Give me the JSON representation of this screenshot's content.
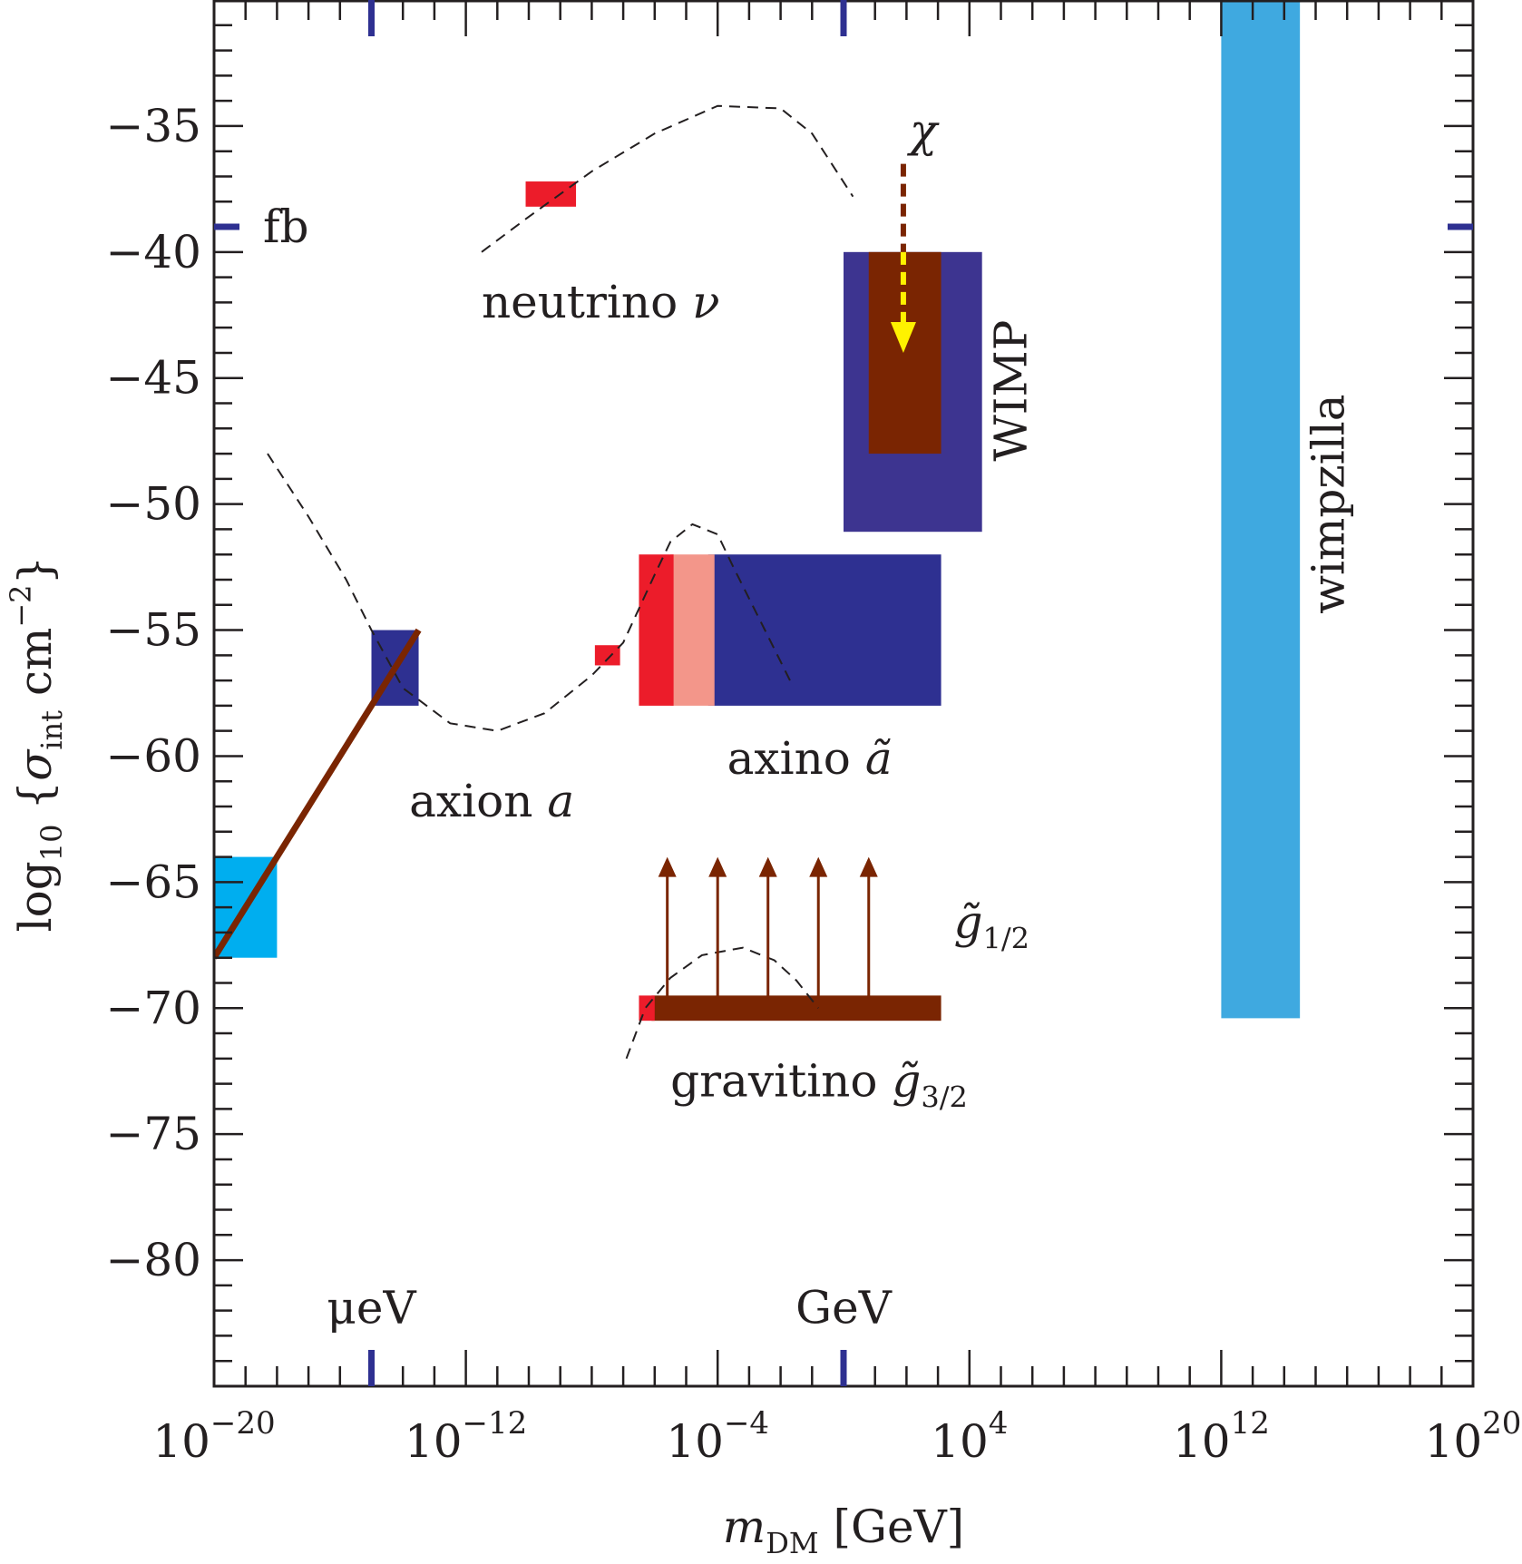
{
  "chart_data": {
    "type": "region-plot",
    "title": "",
    "xlabel": {
      "main": "m",
      "sub": "DM",
      "unit": "[GeV]"
    },
    "ylabel": {
      "prefix": "log",
      "prefix_sub": "10",
      "brace_open": "{",
      "sigma": "σ",
      "sigma_sub": "int",
      "unit": "cm",
      "unit_exp": "−2",
      "brace_close": "}"
    },
    "x_scale": "log10",
    "xlim": [
      -20,
      20
    ],
    "ylim": [
      -85,
      -30
    ],
    "x_ticks": [
      {
        "value": -20,
        "base": "10",
        "exp": "−20"
      },
      {
        "value": -12,
        "base": "10",
        "exp": "−12"
      },
      {
        "value": -4,
        "base": "10",
        "exp": "−4"
      },
      {
        "value": 4,
        "base": "10",
        "exp": "4"
      },
      {
        "value": 12,
        "base": "10",
        "exp": "12"
      },
      {
        "value": 20,
        "base": "10",
        "exp": "20"
      }
    ],
    "y_ticks": [
      {
        "value": -35,
        "label": "−35"
      },
      {
        "value": -40,
        "label": "−40"
      },
      {
        "value": -45,
        "label": "−45"
      },
      {
        "value": -50,
        "label": "−50"
      },
      {
        "value": -55,
        "label": "−55"
      },
      {
        "value": -60,
        "label": "−60"
      },
      {
        "value": -65,
        "label": "−65"
      },
      {
        "value": -70,
        "label": "−70"
      },
      {
        "value": -75,
        "label": "−75"
      },
      {
        "value": -80,
        "label": "−80"
      }
    ],
    "reference_marks": [
      {
        "axis": "x",
        "value": -15,
        "label": "μeV",
        "label_y": -82.5
      },
      {
        "axis": "x",
        "value": 0,
        "label": "GeV",
        "label_y": -82.5
      },
      {
        "axis": "y",
        "value": -39,
        "label": "fb"
      }
    ],
    "regions": [
      {
        "name": "wimpzilla",
        "x": [
          12,
          14.5
        ],
        "y": [
          -70.4,
          -30
        ],
        "color": "#3fa9e0"
      },
      {
        "name": "wimp-outer",
        "x": [
          0,
          4.4
        ],
        "y": [
          -40,
          -51.1
        ],
        "color": "#3d3490"
      },
      {
        "name": "wimp-inner",
        "x": [
          0.8,
          3.1
        ],
        "y": [
          -40,
          -48
        ],
        "color": "#7a2502"
      },
      {
        "name": "axino-blue",
        "x": [
          -4.3,
          3.1
        ],
        "y": [
          -52,
          -58
        ],
        "color": "#2e3091"
      },
      {
        "name": "axino-pink",
        "x": [
          -5.5,
          -4.1
        ],
        "y": [
          -52,
          -58
        ],
        "color": "#f3968a"
      },
      {
        "name": "axino-red",
        "x": [
          -6.5,
          -5.4
        ],
        "y": [
          -52,
          -58
        ],
        "color": "#ec1c2a"
      },
      {
        "name": "axion-blue",
        "x": [
          -15,
          -13.5
        ],
        "y": [
          -55,
          -58
        ],
        "color": "#2e3091"
      },
      {
        "name": "axion-cyan",
        "x": [
          -20,
          -18
        ],
        "y": [
          -64,
          -68
        ],
        "color": "#00aeef"
      },
      {
        "name": "neutrino-red",
        "x": [
          -10.1,
          -8.5
        ],
        "y": [
          -37.2,
          -38.2
        ],
        "color": "#ec1c2a"
      },
      {
        "name": "small-red",
        "x": [
          -7.9,
          -7.1
        ],
        "y": [
          -55.6,
          -56.4
        ],
        "color": "#ec1c2a"
      },
      {
        "name": "gravitino-bar",
        "x": [
          -6.1,
          3.1
        ],
        "y": [
          -69.5,
          -70.5
        ],
        "color": "#7a2502"
      },
      {
        "name": "gravitino-red",
        "x": [
          -6.5,
          -6.0
        ],
        "y": [
          -69.5,
          -70.5
        ],
        "color": "#ec1c2a"
      }
    ],
    "lines": [
      {
        "name": "axion-line",
        "points": [
          [
            -20,
            -68
          ],
          [
            -13.5,
            -55
          ]
        ],
        "color": "#7a2502"
      }
    ],
    "dashed_curves": [
      {
        "name": "neutrino-curve",
        "points": [
          [
            -11.5,
            -40
          ],
          [
            -10,
            -38.6
          ],
          [
            -8,
            -36.8
          ],
          [
            -6,
            -35.3
          ],
          [
            -4,
            -34.2
          ],
          [
            -2,
            -34.3
          ],
          [
            -1,
            -35.3
          ],
          [
            0.3,
            -37.8
          ]
        ]
      },
      {
        "name": "axion-curve",
        "points": [
          [
            -18.3,
            -48
          ],
          [
            -17,
            -50.5
          ],
          [
            -15.8,
            -53
          ],
          [
            -15,
            -55
          ],
          [
            -14,
            -57.3
          ],
          [
            -12.5,
            -58.7
          ],
          [
            -11,
            -59
          ],
          [
            -9.5,
            -58.3
          ],
          [
            -8,
            -56.8
          ],
          [
            -7,
            -55.5
          ],
          [
            -6,
            -52.8
          ],
          [
            -5.5,
            -51.5
          ],
          [
            -4.8,
            -50.8
          ],
          [
            -4,
            -51.2
          ],
          [
            -3.5,
            -52.5
          ],
          [
            -2.5,
            -55
          ],
          [
            -1.7,
            -57
          ]
        ]
      },
      {
        "name": "gravitino-curve",
        "points": [
          [
            -6.9,
            -72
          ],
          [
            -6.3,
            -70
          ],
          [
            -5.5,
            -68.8
          ],
          [
            -4.5,
            -67.9
          ],
          [
            -3.2,
            -67.6
          ],
          [
            -2.2,
            -68.1
          ],
          [
            -1.5,
            -68.9
          ],
          [
            -0.8,
            -70
          ]
        ]
      }
    ],
    "arrows": [
      {
        "name": "gravitino-up-arrow",
        "x": -5.6,
        "from": -69.6,
        "to": -64,
        "color": "#7a2502"
      },
      {
        "name": "gravitino-up-arrow",
        "x": -4.0,
        "from": -69.6,
        "to": -64,
        "color": "#7a2502"
      },
      {
        "name": "gravitino-up-arrow",
        "x": -2.4,
        "from": -69.6,
        "to": -64,
        "color": "#7a2502"
      },
      {
        "name": "gravitino-up-arrow",
        "x": -0.8,
        "from": -69.6,
        "to": -64,
        "color": "#7a2502"
      },
      {
        "name": "gravitino-up-arrow",
        "x": 0.8,
        "from": -69.6,
        "to": -64,
        "color": "#7a2502"
      }
    ],
    "chi_arrow": {
      "x": 1.9,
      "from": -36.5,
      "to": -44,
      "color_top": "#7a2502",
      "color_bottom": "#fff200"
    },
    "annotations": {
      "neutrino": {
        "text": "neutrino ",
        "symbol": "ν",
        "x": -11.5,
        "y": -42.6
      },
      "axion": {
        "text": "axion ",
        "symbol": "a",
        "x": -13.8,
        "y": -62.4
      },
      "axino": {
        "text": "axino ",
        "symbol": "ã",
        "x": -3.7,
        "y": -60.7
      },
      "gravitino": {
        "text": "gravitino ",
        "symbol": "g̃",
        "sub": "3/2",
        "x": -5.5,
        "y": -73.5
      },
      "g12": {
        "symbol": "g̃",
        "sub": "1/2",
        "x": 3.5,
        "y": -67.2
      },
      "chi": {
        "symbol": "χ",
        "x": 2.1,
        "y": -35.8
      },
      "wimp": {
        "text": "WIMP",
        "x": 5.8,
        "y": -45.5
      },
      "wimpzilla": {
        "text": "wimpzilla",
        "x": 15.9,
        "y": -50
      }
    }
  }
}
